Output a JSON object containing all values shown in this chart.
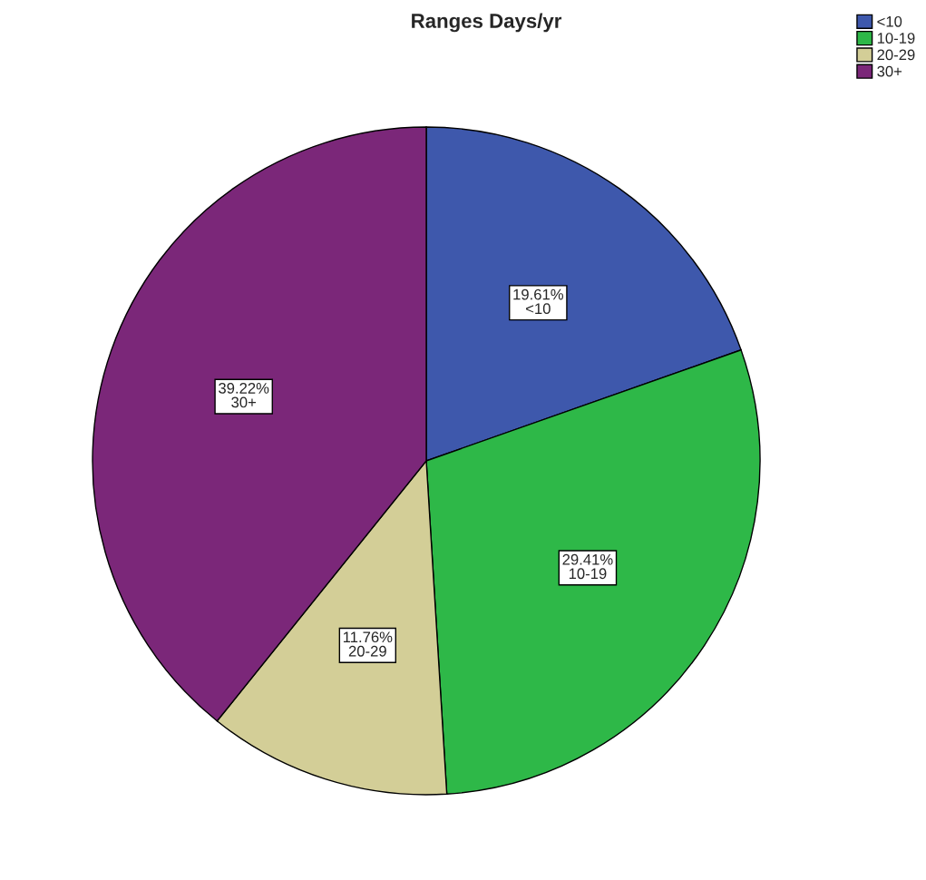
{
  "chart_data": {
    "type": "pie",
    "title": "Ranges Days/yr",
    "categories": [
      "<10",
      "10-19",
      "20-29",
      "30+"
    ],
    "values": [
      19.61,
      29.41,
      11.76,
      39.22
    ],
    "value_labels": [
      "19.61%",
      "29.41%",
      "11.76%",
      "39.22%"
    ],
    "colors": [
      "#3e58ac",
      "#2eb848",
      "#d3ce97",
      "#7b2779"
    ],
    "legend": "top right"
  }
}
